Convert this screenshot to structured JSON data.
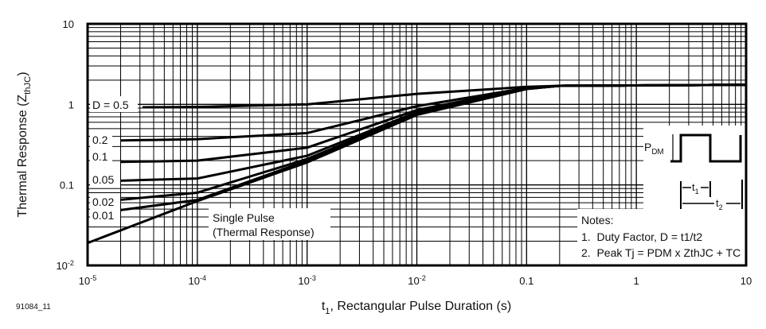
{
  "chart_data": {
    "type": "line",
    "title": "",
    "xlabel": "t1, Rectangular Pulse Duration (s)",
    "xlabel_main": "t",
    "xlabel_sub": "1",
    "xlabel_rest": ", Rectangular Pulse Duration (s)",
    "ylabel_main": "Thermal Response (Z",
    "ylabel_sub": "thJC",
    "ylabel_end": ")",
    "x_scale": "log",
    "y_scale": "log",
    "xlim": [
      1e-05,
      10
    ],
    "ylim": [
      0.01,
      10
    ],
    "grid": true,
    "x_ticks": [
      {
        "value": 1e-05,
        "base": "10",
        "exp": "-5"
      },
      {
        "value": 0.0001,
        "base": "10",
        "exp": "-4"
      },
      {
        "value": 0.001,
        "base": "10",
        "exp": "-3"
      },
      {
        "value": 0.01,
        "base": "10",
        "exp": "-2"
      },
      {
        "value": 0.1,
        "base": "0.1",
        "exp": ""
      },
      {
        "value": 1,
        "base": "1",
        "exp": ""
      },
      {
        "value": 10,
        "base": "10",
        "exp": ""
      }
    ],
    "y_ticks": [
      {
        "value": 10,
        "base": "10",
        "exp": ""
      },
      {
        "value": 1,
        "base": "1",
        "exp": ""
      },
      {
        "value": 0.1,
        "base": "0.1",
        "exp": ""
      },
      {
        "value": 0.01,
        "base": "10",
        "exp": "-2"
      }
    ],
    "x": [
      1e-05,
      0.0001,
      0.001,
      0.01,
      0.1,
      0.2,
      1,
      10
    ],
    "series": [
      {
        "name": "D = 0.5",
        "values": [
          0.91,
          0.93,
          1.0,
          1.35,
          1.65,
          1.7,
          1.72,
          1.75
        ]
      },
      {
        "name": "0.2",
        "values": [
          0.35,
          0.37,
          0.44,
          0.95,
          1.6,
          1.7,
          1.72,
          1.75
        ]
      },
      {
        "name": "0.1",
        "values": [
          0.19,
          0.2,
          0.29,
          0.85,
          1.58,
          1.7,
          1.72,
          1.75
        ]
      },
      {
        "name": "0.05",
        "values": [
          0.11,
          0.12,
          0.23,
          0.8,
          1.57,
          1.7,
          1.72,
          1.75
        ]
      },
      {
        "name": "0.02",
        "values": [
          0.06,
          0.08,
          0.21,
          0.77,
          1.56,
          1.7,
          1.72,
          1.75
        ]
      },
      {
        "name": "0.01",
        "values": [
          0.043,
          0.065,
          0.2,
          0.76,
          1.56,
          1.7,
          1.72,
          1.75
        ]
      },
      {
        "name": "Single Pulse",
        "values": [
          0.019,
          0.063,
          0.19,
          0.74,
          1.55,
          1.7,
          1.72,
          1.75
        ]
      }
    ],
    "annotations": {
      "single_pulse_line1": "Single Pulse",
      "single_pulse_line2": "(Thermal Response)",
      "pdm_main": "P",
      "pdm_sub": "DM",
      "t1_main": "t",
      "t1_sub": "1",
      "t2_main": "t",
      "t2_sub": "2",
      "notes_title": "Notes:",
      "note1": "1.  Duty Factor, D = t1/t2",
      "note2": "2.  Peak Tj = PDM x ZthJC + TC"
    },
    "figure_id": "91084_11"
  }
}
